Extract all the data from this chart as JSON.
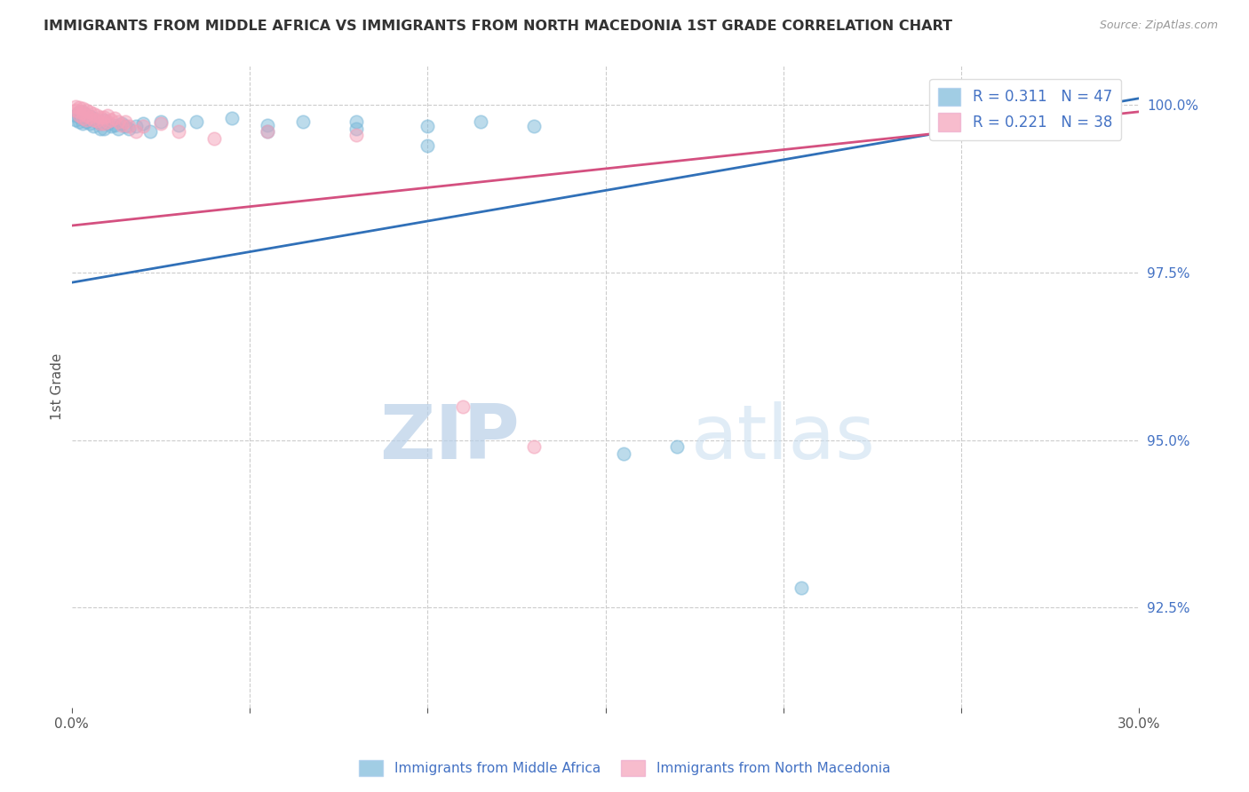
{
  "title": "IMMIGRANTS FROM MIDDLE AFRICA VS IMMIGRANTS FROM NORTH MACEDONIA 1ST GRADE CORRELATION CHART",
  "source": "Source: ZipAtlas.com",
  "ylabel": "1st Grade",
  "x_min": 0.0,
  "x_max": 0.3,
  "y_min": 0.91,
  "y_max": 1.006,
  "y_ticks": [
    0.925,
    0.95,
    0.975,
    1.0
  ],
  "blue_R": 0.311,
  "blue_N": 47,
  "pink_R": 0.221,
  "pink_N": 38,
  "blue_label": "Immigrants from Middle Africa",
  "pink_label": "Immigrants from North Macedonia",
  "blue_color": "#7ab8d9",
  "pink_color": "#f4a0b8",
  "blue_line_color": "#3070b8",
  "pink_line_color": "#d45080",
  "blue_line_x0": 0.0,
  "blue_line_y0": 0.9735,
  "blue_line_x1": 0.3,
  "blue_line_y1": 1.001,
  "pink_line_x0": 0.0,
  "pink_line_y0": 0.982,
  "pink_line_x1": 0.3,
  "pink_line_y1": 0.999,
  "blue_scatter_x": [
    0.001,
    0.001,
    0.002,
    0.002,
    0.002,
    0.003,
    0.003,
    0.003,
    0.004,
    0.004,
    0.005,
    0.005,
    0.006,
    0.006,
    0.007,
    0.008,
    0.008,
    0.009,
    0.009,
    0.01,
    0.011,
    0.012,
    0.013,
    0.014,
    0.015,
    0.016,
    0.018,
    0.02,
    0.022,
    0.025,
    0.03,
    0.035,
    0.045,
    0.055,
    0.065,
    0.08,
    0.1,
    0.115,
    0.13,
    0.155,
    0.17,
    0.205,
    0.255,
    0.29,
    0.055,
    0.08,
    0.1
  ],
  "blue_scatter_y": [
    0.9985,
    0.9978,
    0.999,
    0.9983,
    0.9975,
    0.999,
    0.998,
    0.9972,
    0.9985,
    0.9975,
    0.9983,
    0.9972,
    0.998,
    0.9968,
    0.9975,
    0.9972,
    0.9965,
    0.9978,
    0.9965,
    0.9972,
    0.9968,
    0.997,
    0.9965,
    0.9972,
    0.9968,
    0.9965,
    0.9968,
    0.9972,
    0.996,
    0.9975,
    0.997,
    0.9975,
    0.998,
    0.997,
    0.9975,
    0.9975,
    0.9968,
    0.9975,
    0.9968,
    0.948,
    0.949,
    0.928,
    0.998,
    0.9998,
    0.996,
    0.9965,
    0.994
  ],
  "pink_scatter_x": [
    0.001,
    0.001,
    0.002,
    0.002,
    0.002,
    0.003,
    0.003,
    0.003,
    0.004,
    0.004,
    0.004,
    0.005,
    0.005,
    0.006,
    0.006,
    0.007,
    0.007,
    0.008,
    0.008,
    0.009,
    0.009,
    0.01,
    0.01,
    0.011,
    0.012,
    0.013,
    0.014,
    0.015,
    0.016,
    0.018,
    0.02,
    0.025,
    0.03,
    0.04,
    0.055,
    0.08,
    0.11,
    0.13
  ],
  "pink_scatter_y": [
    0.9998,
    0.9992,
    0.9997,
    0.999,
    0.9985,
    0.9995,
    0.9988,
    0.998,
    0.9993,
    0.9985,
    0.9978,
    0.999,
    0.9982,
    0.9987,
    0.9978,
    0.9985,
    0.9977,
    0.9982,
    0.9973,
    0.9982,
    0.9973,
    0.9985,
    0.9975,
    0.9978,
    0.998,
    0.9975,
    0.997,
    0.9975,
    0.9968,
    0.996,
    0.9968,
    0.9972,
    0.996,
    0.995,
    0.996,
    0.9955,
    0.955,
    0.949
  ],
  "watermark_zip": "ZIP",
  "watermark_atlas": "atlas",
  "background_color": "#ffffff",
  "grid_color": "#cccccc"
}
